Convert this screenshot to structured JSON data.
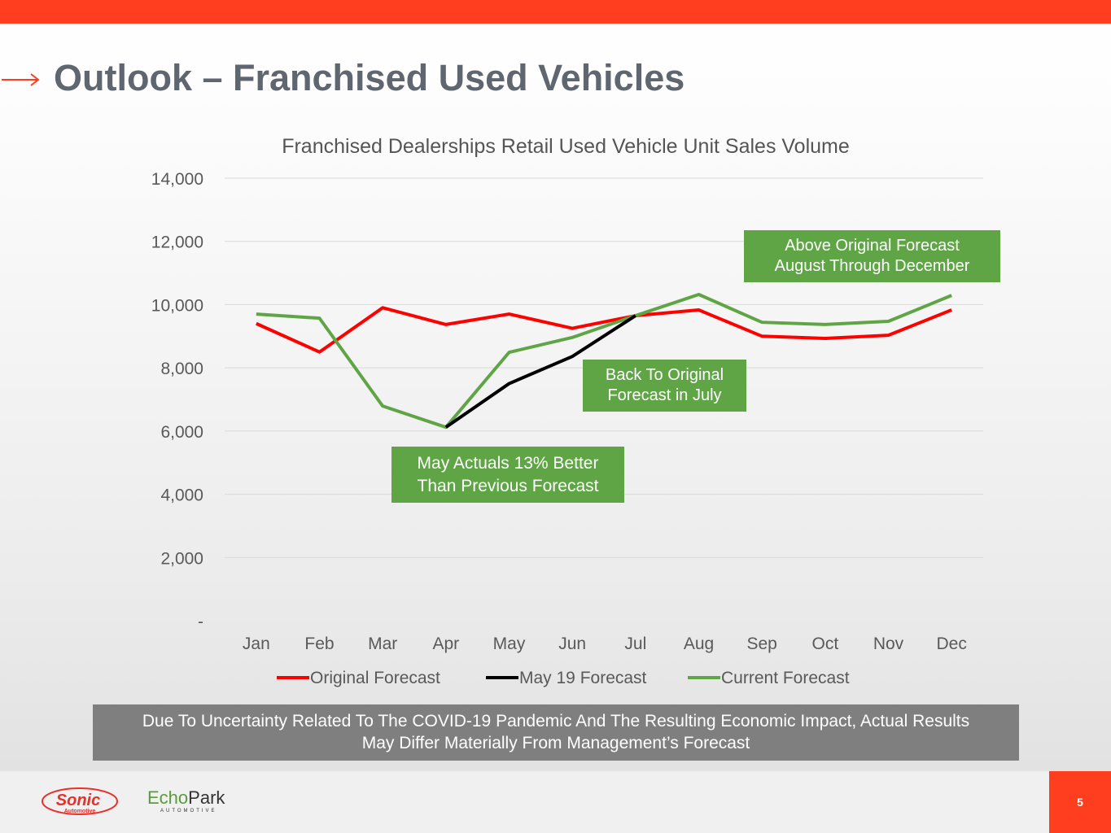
{
  "header": {
    "title": "Outlook – Franchised Used Vehicles"
  },
  "chart_data": {
    "type": "line",
    "title": "Franchised Dealerships Retail Used Vehicle Unit Sales Volume",
    "categories": [
      "Jan",
      "Feb",
      "Mar",
      "Apr",
      "May",
      "Jun",
      "Jul",
      "Aug",
      "Sep",
      "Oct",
      "Nov",
      "Dec"
    ],
    "ylim": [
      0,
      14000
    ],
    "yticks": [
      0,
      2000,
      4000,
      6000,
      8000,
      10000,
      12000,
      14000
    ],
    "ytick_labels": [
      "-",
      "2,000",
      "4,000",
      "6,000",
      "8,000",
      "10,000",
      "12,000",
      "14,000"
    ],
    "grid": true,
    "legend_position": "bottom",
    "series": [
      {
        "name": "Original Forecast",
        "color": "#ff0000",
        "values": [
          9400,
          8500,
          9900,
          9370,
          9700,
          9250,
          9650,
          9830,
          9000,
          8930,
          9030,
          9830
        ]
      },
      {
        "name": "May 19 Forecast",
        "color": "#000000",
        "values": [
          null,
          null,
          null,
          6120,
          7500,
          8360,
          9650,
          null,
          null,
          null,
          null,
          null
        ]
      },
      {
        "name": "Current Forecast",
        "color": "#5fa545",
        "values": [
          9700,
          9570,
          6790,
          6120,
          8490,
          8960,
          9650,
          10320,
          9440,
          9370,
          9470,
          10290
        ]
      }
    ],
    "annotations": [
      "Above Original Forecast August Through December",
      "Back To Original Forecast in July",
      "May Actuals 13% Better Than Previous Forecast"
    ]
  },
  "annotations": {
    "a1": {
      "line1": "Above Original Forecast",
      "line2": "August Through December"
    },
    "a2": {
      "line1": "Back To Original",
      "line2": "Forecast in July"
    },
    "a3": {
      "line1": "May Actuals 13% Better",
      "line2": "Than Previous Forecast"
    }
  },
  "disclaimer": {
    "line1": "Due To Uncertainty Related To The COVID-19 Pandemic And The Resulting Economic Impact, Actual Results",
    "line2": "May Differ Materially From Management’s Forecast"
  },
  "footer": {
    "logo1": "Sonic Automotive",
    "logo1_main": "Sonic",
    "logo1_sub": "Automotive",
    "logo2_a": "Echo",
    "logo2_b": "Park",
    "logo2_sub": "AUTOMOTIVE",
    "page": "5"
  }
}
